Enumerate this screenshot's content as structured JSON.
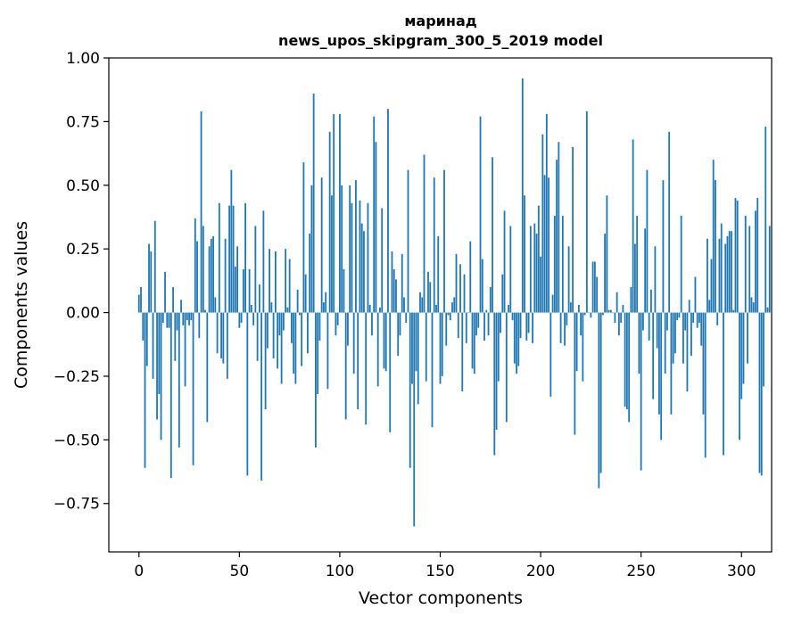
{
  "chart_data": {
    "type": "bar",
    "title": "маринад",
    "subtitle": "news_upos_skipgram_300_5_2019 model",
    "xlabel": "Vector components",
    "ylabel": "Components values",
    "xlim": [
      -15,
      315
    ],
    "ylim": [
      -0.94,
      1.0
    ],
    "xticks": [
      0,
      50,
      100,
      150,
      200,
      250,
      300
    ],
    "xtick_labels": [
      "0",
      "50",
      "100",
      "150",
      "200",
      "250",
      "300"
    ],
    "yticks": [
      1.0,
      0.75,
      0.5,
      0.25,
      0.0,
      -0.25,
      -0.5,
      -0.75
    ],
    "ytick_labels": [
      "1.00",
      "0.75",
      "0.50",
      "0.25",
      "0.00",
      "−0.25",
      "−0.50",
      "−0.75"
    ],
    "bar_color": "#1f77b4",
    "grid": false,
    "values": [
      0.07,
      0.1,
      -0.11,
      -0.61,
      -0.21,
      0.27,
      0.24,
      -0.26,
      0.36,
      -0.42,
      -0.32,
      -0.5,
      -0.04,
      0.16,
      -0.06,
      -0.06,
      -0.65,
      0.1,
      -0.19,
      -0.07,
      -0.53,
      0.05,
      -0.05,
      -0.29,
      -0.03,
      -0.05,
      -0.03,
      -0.6,
      0.37,
      0.28,
      -0.1,
      0.79,
      0.34,
      0.01,
      -0.43,
      0.26,
      0.29,
      0.3,
      0.06,
      -0.16,
      0.43,
      -0.18,
      -0.2,
      0.29,
      -0.26,
      0.42,
      0.56,
      0.42,
      0.18,
      0.26,
      -0.06,
      -0.04,
      0.17,
      0.43,
      -0.64,
      0.17,
      0.03,
      -0.05,
      0.34,
      -0.19,
      0.11,
      -0.66,
      0.4,
      -0.38,
      -0.14,
      0.25,
      0.04,
      -0.18,
      0.24,
      -0.22,
      -0.09,
      -0.28,
      -0.07,
      0.25,
      0.02,
      0.21,
      -0.12,
      -0.24,
      -0.28,
      0.09,
      -0.01,
      -0.21,
      0.59,
      0.15,
      -0.16,
      0.31,
      0.5,
      0.86,
      -0.53,
      -0.32,
      -0.11,
      0.53,
      0.04,
      0.08,
      -0.3,
      0.71,
      0.46,
      0.78,
      -0.09,
      -0.05,
      0.78,
      0.5,
      0.17,
      -0.42,
      -0.13,
      0.5,
      0.43,
      -0.24,
      0.52,
      -0.38,
      0.44,
      0.35,
      0.32,
      -0.44,
      0.43,
      0.03,
      -0.09,
      0.77,
      0.67,
      -0.29,
      0.02,
      0.41,
      -0.22,
      -0.23,
      0.8,
      -0.47,
      0.24,
      0.17,
      0.13,
      -0.17,
      -0.09,
      0.23,
      0.06,
      -0.04,
      0.56,
      -0.61,
      -0.28,
      -0.84,
      -0.23,
      -0.36,
      0.08,
      0.06,
      0.62,
      -0.27,
      0.16,
      0.12,
      -0.45,
      0.53,
      0.03,
      0.3,
      -0.28,
      -0.25,
      0.56,
      -0.13,
      -0.01,
      -0.03,
      0.04,
      0.06,
      0.23,
      -0.1,
      0.19,
      -0.31,
      0.15,
      -0.12,
      0.0,
      0.28,
      -0.22,
      -0.24,
      -0.09,
      -0.06,
      0.77,
      0.21,
      -0.11,
      0.01,
      -0.09,
      0.1,
      0.61,
      -0.56,
      -0.46,
      -0.27,
      -0.08,
      0.15,
      0.4,
      -0.43,
      0.03,
      0.34,
      -0.03,
      -0.2,
      -0.24,
      -0.21,
      -0.1,
      0.92,
      0.46,
      -0.11,
      -0.08,
      0.34,
      -0.12,
      0.35,
      0.31,
      0.42,
      0.22,
      0.7,
      0.54,
      0.78,
      0.53,
      -0.33,
      0.07,
      0.38,
      0.6,
      0.67,
      -0.12,
      0.38,
      -0.13,
      -0.05,
      0.26,
      0.04,
      0.65,
      -0.48,
      -0.23,
      0.03,
      -0.09,
      -0.27,
      -0.01,
      0.79,
      0.0,
      -0.02,
      0.2,
      0.2,
      0.14,
      -0.69,
      -0.63,
      -0.01,
      0.31,
      0.46,
      0.01,
      0.01,
      0.0,
      -0.04,
      0.08,
      -0.09,
      -0.04,
      0.03,
      -0.37,
      -0.38,
      -0.43,
      0.1,
      0.68,
      0.27,
      0.38,
      -0.24,
      -0.62,
      -0.07,
      0.33,
      0.56,
      -0.11,
      0.09,
      -0.34,
      0.26,
      -0.14,
      -0.4,
      -0.5,
      0.52,
      -0.24,
      -0.07,
      0.71,
      -0.4,
      -0.2,
      -0.16,
      -0.03,
      -0.02,
      0.38,
      -0.2,
      -0.07,
      -0.31,
      0.05,
      -0.17,
      -0.04,
      0.14,
      -0.06,
      -0.04,
      -0.13,
      -0.4,
      -0.57,
      0.29,
      0.05,
      0.21,
      0.6,
      0.52,
      -0.05,
      0.29,
      0.35,
      -0.56,
      0.27,
      0.3,
      0.32,
      0.32,
      0.01,
      0.45,
      0.44,
      -0.5,
      -0.34,
      -0.28,
      0.38,
      -0.2,
      0.34,
      0.06,
      0.04,
      0.4,
      0.45,
      -0.63,
      -0.64,
      -0.29,
      0.73,
      0.02,
      0.34
    ]
  }
}
